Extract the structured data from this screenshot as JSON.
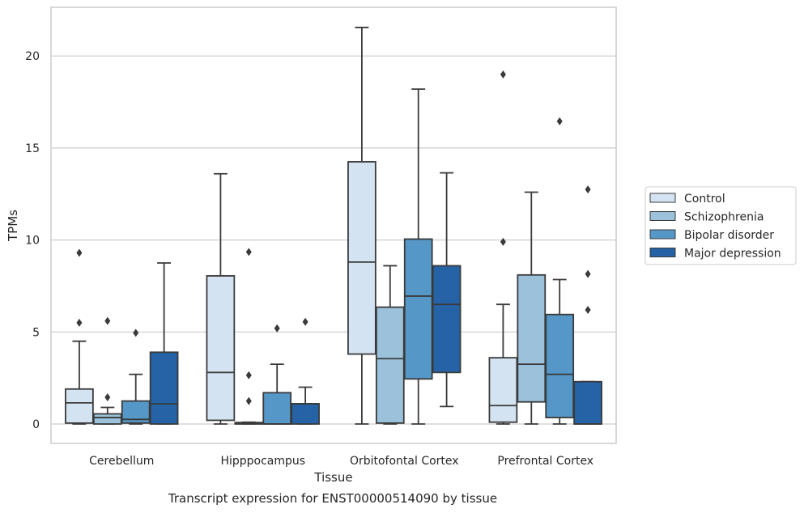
{
  "chart_data": {
    "type": "boxplot",
    "caption": "Transcript expression for ENST00000514090 by tissue",
    "xlabel": "Tissue",
    "ylabel": "TPMs",
    "ylim": [
      -1.05,
      22.6
    ],
    "yticks": [
      0,
      5,
      10,
      15,
      20
    ],
    "grid": "horizontal",
    "legend_position": "right",
    "categories": [
      "Cerebellum",
      "Hipppocampus",
      "Orbitofontal Cortex",
      "Prefrontal Cortex"
    ],
    "series": [
      {
        "name": "Control",
        "color": "#d4e3f1",
        "boxes": [
          {
            "whisker_low": 0.0,
            "q1": 0.05,
            "median": 1.15,
            "q3": 1.9,
            "whisker_high": 4.5,
            "outliers": [
              5.5,
              9.3
            ]
          },
          {
            "whisker_low": 0.0,
            "q1": 0.2,
            "median": 2.8,
            "q3": 8.05,
            "whisker_high": 13.6,
            "outliers": []
          },
          {
            "whisker_low": 0.0,
            "q1": 3.8,
            "median": 8.8,
            "q3": 14.25,
            "whisker_high": 21.55,
            "outliers": []
          },
          {
            "whisker_low": 0.0,
            "q1": 0.1,
            "median": 1.0,
            "q3": 3.6,
            "whisker_high": 6.5,
            "outliers": [
              9.9,
              19.0
            ]
          }
        ]
      },
      {
        "name": "Schizophrenia",
        "color": "#9bc1db",
        "boxes": [
          {
            "whisker_low": 0.0,
            "q1": 0.0,
            "median": 0.35,
            "q3": 0.55,
            "whisker_high": 0.9,
            "outliers": [
              1.45,
              5.6
            ]
          },
          {
            "whisker_low": 0.0,
            "q1": 0.0,
            "median": 0.02,
            "q3": 0.08,
            "whisker_high": 0.1,
            "outliers": [
              1.25,
              2.65,
              9.35
            ]
          },
          {
            "whisker_low": 0.0,
            "q1": 0.05,
            "median": 3.55,
            "q3": 6.35,
            "whisker_high": 8.6,
            "outliers": []
          },
          {
            "whisker_low": 0.0,
            "q1": 1.2,
            "median": 3.25,
            "q3": 8.1,
            "whisker_high": 12.6,
            "outliers": []
          }
        ]
      },
      {
        "name": "Bipolar disorder",
        "color": "#5597c6",
        "boxes": [
          {
            "whisker_low": 0.0,
            "q1": 0.05,
            "median": 0.25,
            "q3": 1.25,
            "whisker_high": 2.7,
            "outliers": [
              4.95
            ]
          },
          {
            "whisker_low": 0.0,
            "q1": 0.0,
            "median": 0.0,
            "q3": 1.7,
            "whisker_high": 3.25,
            "outliers": [
              5.2
            ]
          },
          {
            "whisker_low": 0.0,
            "q1": 2.45,
            "median": 6.95,
            "q3": 10.05,
            "whisker_high": 18.2,
            "outliers": []
          },
          {
            "whisker_low": 0.0,
            "q1": 0.35,
            "median": 2.7,
            "q3": 5.95,
            "whisker_high": 7.85,
            "outliers": [
              16.45
            ]
          }
        ]
      },
      {
        "name": "Major depression",
        "color": "#2563a6",
        "boxes": [
          {
            "whisker_low": 0.0,
            "q1": 0.0,
            "median": 1.1,
            "q3": 3.9,
            "whisker_high": 8.75,
            "outliers": []
          },
          {
            "whisker_low": 0.0,
            "q1": 0.0,
            "median": 1.1,
            "q3": 1.1,
            "whisker_high": 2.0,
            "outliers": [
              5.55
            ]
          },
          {
            "whisker_low": 0.95,
            "q1": 2.8,
            "median": 6.5,
            "q3": 8.6,
            "whisker_high": 13.65,
            "outliers": []
          },
          {
            "whisker_low": 0.0,
            "q1": 0.0,
            "median": 0.0,
            "q3": 2.3,
            "whisker_high": 2.3,
            "outliers": [
              6.2,
              8.15,
              12.75
            ]
          }
        ]
      }
    ]
  }
}
